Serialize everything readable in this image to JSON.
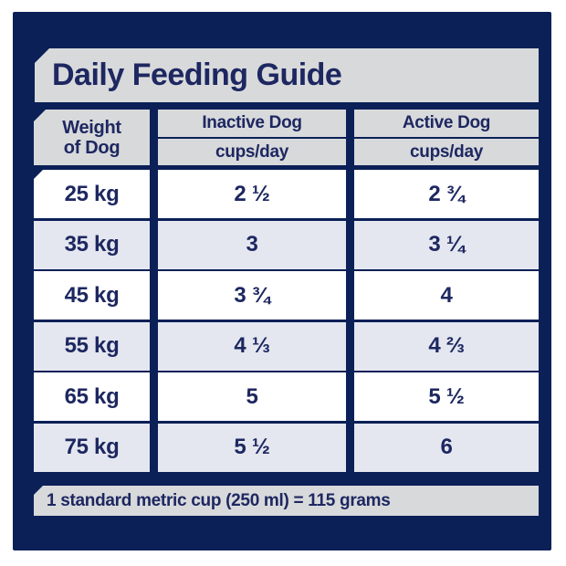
{
  "title": "Daily Feeding Guide",
  "header": {
    "weight_line1": "Weight",
    "weight_line2": "of Dog",
    "inactive_label": "Inactive Dog",
    "inactive_unit": "cups/day",
    "active_label": "Active Dog",
    "active_unit": "cups/day"
  },
  "chart_data": {
    "type": "table",
    "title": "Daily Feeding Guide",
    "columns": [
      "Weight of Dog",
      "Inactive Dog (cups/day)",
      "Active Dog (cups/day)"
    ],
    "rows": [
      [
        "25 kg",
        "2 ½",
        "2 ¾"
      ],
      [
        "35 kg",
        "3",
        "3 ¼"
      ],
      [
        "45 kg",
        "3 ¾",
        "4"
      ],
      [
        "55 kg",
        "4 ⅓",
        "4 ⅔"
      ],
      [
        "65 kg",
        "5",
        "5 ½"
      ],
      [
        "75 kg",
        "5 ½",
        "6"
      ]
    ],
    "note": "1 standard metric cup (250 ml) = 115 grams"
  },
  "footer_note": "1 standard metric cup (250 ml) = 115 grams",
  "colors": {
    "navy": "#0b2057",
    "panel_gray": "#d8d9db",
    "row_alt": "#e4e7f0",
    "row_white": "#ffffff",
    "text_navy": "#1d2760"
  }
}
